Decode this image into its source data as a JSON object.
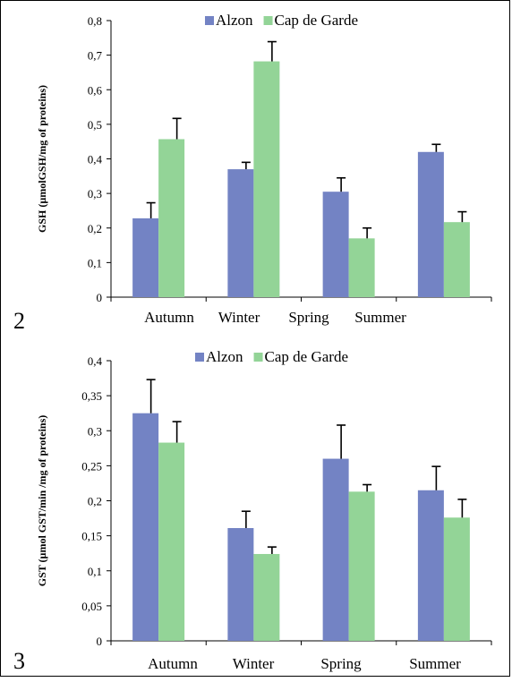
{
  "colors": {
    "alzon": "#7383c4",
    "cap": "#93d497",
    "axis": "#000000"
  },
  "chart_data": [
    {
      "type": "bar",
      "panel_number": "2",
      "ylabel": "GSH (µmolGSH/mg of proteins)",
      "categories": [
        "Autumn",
        "Winter",
        "Spring",
        "Summer"
      ],
      "yticks": [
        "0",
        "0,1",
        "0,2",
        "0,3",
        "0,4",
        "0,5",
        "0,6",
        "0,7",
        "0,8"
      ],
      "ylim": [
        0,
        0.8
      ],
      "legend_position": "top",
      "series": [
        {
          "name": "Alzon",
          "values": [
            0.228,
            0.37,
            0.305,
            0.42
          ],
          "errors": [
            0.045,
            0.02,
            0.04,
            0.022
          ]
        },
        {
          "name": "Cap de Garde",
          "values": [
            0.457,
            0.682,
            0.17,
            0.217
          ],
          "errors": [
            0.06,
            0.057,
            0.03,
            0.03
          ]
        }
      ]
    },
    {
      "type": "bar",
      "panel_number": "3",
      "ylabel": "GST (µmol GST/min /mg of proteins)",
      "categories": [
        "Autumn",
        "Winter",
        "Spring",
        "Summer"
      ],
      "yticks": [
        "0",
        "0,05",
        "0,1",
        "0,15",
        "0,2",
        "0,25",
        "0,3",
        "0,35",
        "0,4"
      ],
      "ylim": [
        0,
        0.4
      ],
      "legend_position": "top",
      "series": [
        {
          "name": "Alzon",
          "values": [
            0.325,
            0.161,
            0.26,
            0.215
          ],
          "errors": [
            0.048,
            0.024,
            0.048,
            0.034
          ]
        },
        {
          "name": "Cap de Garde",
          "values": [
            0.283,
            0.124,
            0.213,
            0.176
          ],
          "errors": [
            0.03,
            0.01,
            0.01,
            0.026
          ]
        }
      ]
    }
  ]
}
